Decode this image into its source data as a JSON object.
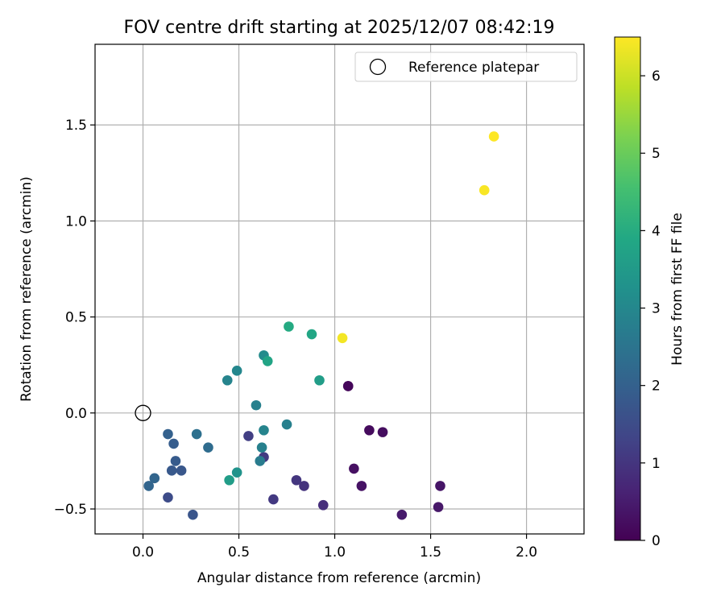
{
  "chart_data": {
    "type": "scatter",
    "title": "FOV centre drift starting at 2025/12/07 08:42:19",
    "xlabel": "Angular distance from reference (arcmin)",
    "ylabel": "Rotation from reference (arcmin)",
    "xlim": [
      -0.25,
      2.3
    ],
    "ylim": [
      -0.63,
      1.92
    ],
    "xticks": [
      0.0,
      0.5,
      1.0,
      1.5,
      2.0
    ],
    "xtick_labels": [
      "0.0",
      "0.5",
      "1.0",
      "1.5",
      "2.0"
    ],
    "yticks": [
      -0.5,
      0.0,
      0.5,
      1.0,
      1.5
    ],
    "ytick_labels": [
      "−0.5",
      "0.0",
      "0.5",
      "1.0",
      "1.5"
    ],
    "grid": true,
    "legend": {
      "position": "top-right",
      "entries": [
        "Reference platepar"
      ]
    },
    "reference": {
      "label": "Reference platepar",
      "x": 0.0,
      "y": 0.0
    },
    "colorbar": {
      "label": "Hours from first FF file",
      "min": 0,
      "max": 6.5,
      "ticks": [
        0,
        1,
        2,
        3,
        4,
        5,
        6
      ],
      "tick_labels": [
        "0",
        "1",
        "2",
        "3",
        "4",
        "5",
        "6"
      ],
      "colormap": "viridis"
    },
    "points": [
      {
        "x": 1.07,
        "y": 0.14,
        "hours": 0.05
      },
      {
        "x": 1.07,
        "y": 0.14,
        "hours": 0.12
      },
      {
        "x": 1.18,
        "y": -0.09,
        "hours": 0.18
      },
      {
        "x": 1.25,
        "y": -0.1,
        "hours": 0.22
      },
      {
        "x": 1.1,
        "y": -0.29,
        "hours": 0.28
      },
      {
        "x": 1.14,
        "y": -0.38,
        "hours": 0.32
      },
      {
        "x": 1.55,
        "y": -0.38,
        "hours": 0.38
      },
      {
        "x": 1.54,
        "y": -0.49,
        "hours": 0.42
      },
      {
        "x": 1.35,
        "y": -0.53,
        "hours": 0.48
      },
      {
        "x": 0.94,
        "y": -0.48,
        "hours": 0.85
      },
      {
        "x": 0.84,
        "y": -0.38,
        "hours": 0.95
      },
      {
        "x": 0.8,
        "y": -0.35,
        "hours": 1.02
      },
      {
        "x": 0.68,
        "y": -0.45,
        "hours": 1.08
      },
      {
        "x": 0.63,
        "y": -0.23,
        "hours": 1.1
      },
      {
        "x": 0.55,
        "y": -0.12,
        "hours": 1.2
      },
      {
        "x": 0.13,
        "y": -0.44,
        "hours": 1.5
      },
      {
        "x": 0.26,
        "y": -0.53,
        "hours": 1.7
      },
      {
        "x": 0.2,
        "y": -0.3,
        "hours": 1.75
      },
      {
        "x": 0.15,
        "y": -0.3,
        "hours": 1.8
      },
      {
        "x": 0.17,
        "y": -0.25,
        "hours": 1.85
      },
      {
        "x": 0.16,
        "y": -0.16,
        "hours": 1.9
      },
      {
        "x": 0.13,
        "y": -0.11,
        "hours": 2.0
      },
      {
        "x": 0.03,
        "y": -0.38,
        "hours": 2.1
      },
      {
        "x": 0.06,
        "y": -0.34,
        "hours": 2.1
      },
      {
        "x": 0.34,
        "y": -0.18,
        "hours": 2.3
      },
      {
        "x": 0.28,
        "y": -0.11,
        "hours": 2.4
      },
      {
        "x": 0.61,
        "y": -0.25,
        "hours": 2.7
      },
      {
        "x": 0.62,
        "y": -0.18,
        "hours": 2.8
      },
      {
        "x": 0.75,
        "y": -0.06,
        "hours": 2.8
      },
      {
        "x": 0.63,
        "y": -0.09,
        "hours": 2.9
      },
      {
        "x": 0.59,
        "y": 0.04,
        "hours": 2.8
      },
      {
        "x": 0.44,
        "y": 0.17,
        "hours": 2.9
      },
      {
        "x": 0.49,
        "y": 0.22,
        "hours": 3.0
      },
      {
        "x": 0.63,
        "y": 0.3,
        "hours": 3.1
      },
      {
        "x": 0.49,
        "y": -0.31,
        "hours": 3.3
      },
      {
        "x": 0.45,
        "y": -0.35,
        "hours": 3.6
      },
      {
        "x": 0.92,
        "y": 0.17,
        "hours": 3.6
      },
      {
        "x": 0.65,
        "y": 0.27,
        "hours": 3.8
      },
      {
        "x": 0.88,
        "y": 0.41,
        "hours": 3.85
      },
      {
        "x": 0.76,
        "y": 0.45,
        "hours": 3.95
      },
      {
        "x": 1.04,
        "y": 0.39,
        "hours": 6.4
      },
      {
        "x": 1.78,
        "y": 1.16,
        "hours": 6.45
      },
      {
        "x": 1.83,
        "y": 1.44,
        "hours": 6.5
      }
    ]
  }
}
